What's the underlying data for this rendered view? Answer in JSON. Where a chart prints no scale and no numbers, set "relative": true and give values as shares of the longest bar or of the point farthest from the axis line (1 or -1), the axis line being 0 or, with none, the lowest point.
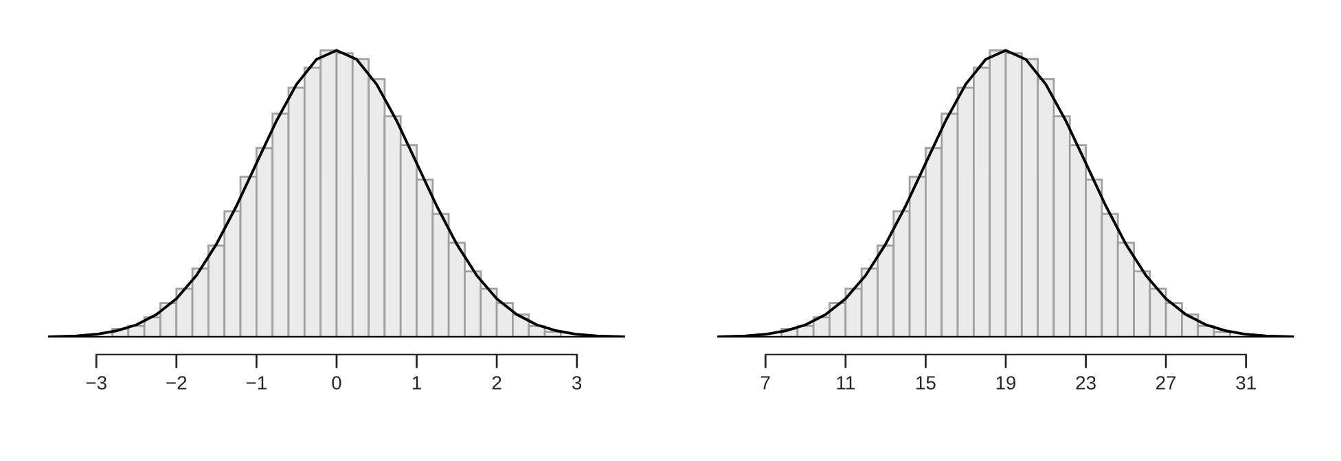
{
  "chart_data": [
    {
      "type": "histogram",
      "relative": true,
      "color": "#ebebeb",
      "bins": [
        -3,
        -2.8,
        -2.6,
        -2.4,
        -2.2,
        -2,
        -1.8,
        -1.6,
        -1.4,
        -1.2,
        -1,
        -0.8,
        -0.6,
        -0.4,
        -0.2,
        0,
        0.2,
        0.4,
        0.6,
        0.8,
        1,
        1.2,
        1.4,
        1.6,
        1.8,
        2,
        2.2,
        2.4,
        2.6,
        2.8,
        3
      ],
      "values": [
        null,
        0.03,
        0.04,
        0.07,
        0.12,
        0.17,
        0.24,
        0.32,
        0.44,
        0.56,
        0.66,
        0.78,
        0.87,
        0.94,
        1,
        0.99,
        0.97,
        0.9,
        0.77,
        0.67,
        0.55,
        0.43,
        0.33,
        0.23,
        0.17,
        0.12,
        0.08,
        0.04,
        0.02,
        null
      ],
      "series": [
        {
          "type": "line",
          "color": "#000000",
          "x": [
            -3.6,
            -3.25,
            -3,
            -2.75,
            -2.5,
            -2.25,
            -2,
            -1.75,
            -1.5,
            -1.25,
            -1,
            -0.75,
            -0.5,
            -0.25,
            0,
            0.25,
            0.5,
            0.75,
            1,
            1.25,
            1.5,
            1.75,
            2,
            2.25,
            2.5,
            2.75,
            3,
            3.25,
            3.6
          ],
          "values": [
            0.002,
            0.005,
            0.011,
            0.023,
            0.044,
            0.08,
            0.135,
            0.216,
            0.325,
            0.458,
            0.607,
            0.755,
            0.882,
            0.969,
            1,
            0.969,
            0.882,
            0.755,
            0.607,
            0.458,
            0.325,
            0.216,
            0.135,
            0.08,
            0.044,
            0.023,
            0.011,
            0.005,
            0.002
          ]
        }
      ],
      "xlim": [
        -3.6,
        3.6
      ],
      "xticks": [
        {
          "value": -3,
          "label": "−3"
        },
        {
          "value": -2,
          "label": "−2"
        },
        {
          "value": -1,
          "label": "−1"
        },
        0,
        1,
        2,
        3
      ],
      "grid": false,
      "legend": false
    },
    {
      "type": "histogram",
      "relative": true,
      "color": "#ebebeb",
      "bins": [
        7,
        7.8,
        8.6,
        9.4,
        10.2,
        11,
        11.8,
        12.6,
        13.4,
        14.2,
        15,
        15.8,
        16.6,
        17.4,
        18.2,
        19,
        19.8,
        20.6,
        21.4,
        22.2,
        23,
        23.8,
        24.6,
        25.4,
        26.2,
        27,
        27.8,
        28.6,
        29.4,
        30.2,
        31
      ],
      "values": [
        null,
        0.03,
        0.04,
        0.07,
        0.12,
        0.17,
        0.24,
        0.32,
        0.44,
        0.56,
        0.66,
        0.78,
        0.87,
        0.94,
        1,
        0.99,
        0.97,
        0.9,
        0.77,
        0.67,
        0.55,
        0.43,
        0.33,
        0.23,
        0.17,
        0.12,
        0.08,
        0.04,
        0.02,
        null
      ],
      "series": [
        {
          "type": "line",
          "color": "#000000",
          "x": [
            4.6,
            6,
            7,
            8,
            9,
            10,
            11,
            12,
            13,
            14,
            15,
            16,
            17,
            18,
            19,
            20,
            21,
            22,
            23,
            24,
            25,
            26,
            27,
            28,
            29,
            30,
            31,
            32,
            33.4
          ],
          "values": [
            0.002,
            0.005,
            0.011,
            0.023,
            0.044,
            0.08,
            0.135,
            0.216,
            0.325,
            0.458,
            0.607,
            0.755,
            0.882,
            0.969,
            1,
            0.969,
            0.882,
            0.755,
            0.607,
            0.458,
            0.325,
            0.216,
            0.135,
            0.08,
            0.044,
            0.023,
            0.011,
            0.005,
            0.002
          ]
        }
      ],
      "xlim": [
        4.6,
        33.4
      ],
      "xticks": [
        7,
        11,
        15,
        19,
        23,
        27,
        31
      ],
      "grid": false,
      "legend": false
    }
  ]
}
